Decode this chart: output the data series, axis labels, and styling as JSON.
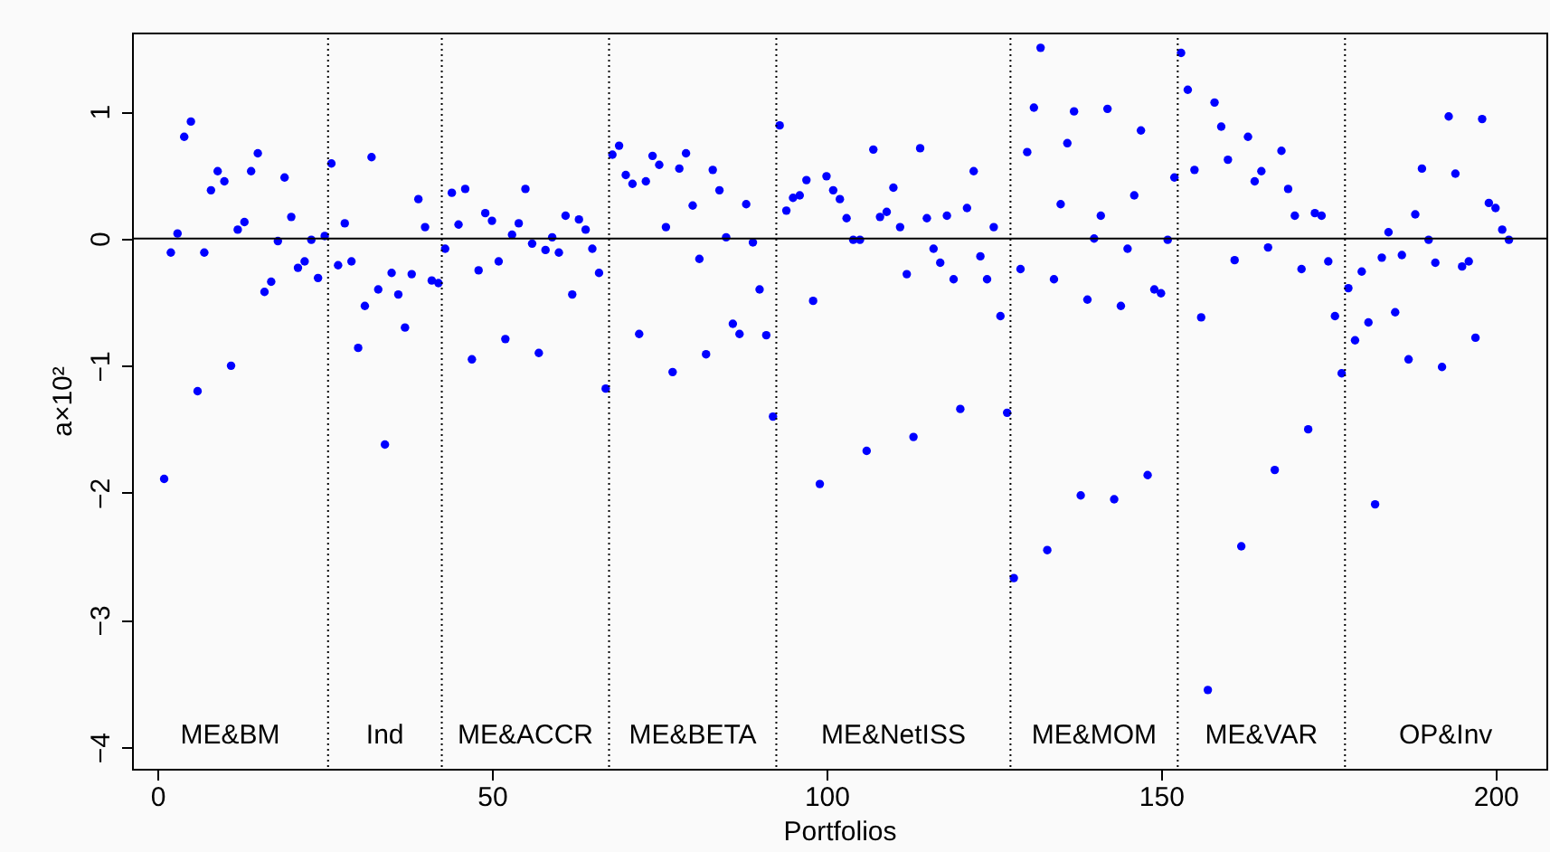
{
  "chart_data": {
    "type": "scatter",
    "xlabel": "Portfolios",
    "ylabel": "a×10²",
    "x": [
      1,
      2,
      3,
      4,
      5,
      6,
      7,
      8,
      9,
      10,
      11,
      12,
      13,
      14,
      15,
      16,
      17,
      18,
      19,
      20,
      21,
      22,
      23,
      24,
      25,
      26,
      27,
      28,
      29,
      30,
      31,
      32,
      33,
      34,
      35,
      36,
      37,
      38,
      39,
      40,
      41,
      42,
      43,
      44,
      45,
      46,
      47,
      48,
      49,
      50,
      51,
      52,
      53,
      54,
      55,
      56,
      57,
      58,
      59,
      60,
      61,
      62,
      63,
      64,
      65,
      66,
      67,
      68,
      69,
      70,
      71,
      72,
      73,
      74,
      75,
      76,
      77,
      78,
      79,
      80,
      81,
      82,
      83,
      84,
      85,
      86,
      87,
      88,
      89,
      90,
      91,
      92,
      93,
      94,
      95,
      96,
      97,
      98,
      99,
      100,
      101,
      102,
      103,
      104,
      105,
      106,
      107,
      108,
      109,
      110,
      111,
      112,
      113,
      114,
      115,
      116,
      117,
      118,
      119,
      120,
      121,
      122,
      123,
      124,
      125,
      126,
      127,
      128,
      129,
      130,
      131,
      132,
      133,
      134,
      135,
      136,
      137,
      138,
      139,
      140,
      141,
      142,
      143,
      144,
      145,
      146,
      147,
      148,
      149,
      150,
      151,
      152,
      153,
      154,
      155,
      156,
      157,
      158,
      159,
      160,
      161,
      162,
      163,
      164,
      165,
      166,
      167,
      168,
      169,
      170,
      171,
      172,
      173,
      174,
      175,
      176,
      177,
      178,
      179,
      180,
      181,
      182,
      183,
      184,
      185,
      186,
      187,
      188,
      189,
      190,
      191,
      192,
      193,
      194,
      195,
      196,
      197,
      198,
      199,
      200,
      201,
      202
    ],
    "series": [
      {
        "color": "#0000ff",
        "values": [
          -1.89,
          -0.11,
          0.04,
          0.8,
          0.92,
          -1.2,
          -0.11,
          0.38,
          0.53,
          0.45,
          -1.0,
          0.07,
          0.13,
          0.53,
          0.67,
          -0.42,
          -0.34,
          -0.02,
          0.48,
          0.17,
          -0.23,
          -0.18,
          -0.01,
          -0.31,
          0.02,
          0.59,
          -0.21,
          0.12,
          -0.18,
          -0.86,
          -0.53,
          0.64,
          -0.4,
          -1.62,
          -0.27,
          -0.44,
          -0.7,
          -0.28,
          0.31,
          0.09,
          -0.33,
          -0.35,
          -0.08,
          0.36,
          0.11,
          0.39,
          -0.95,
          -0.25,
          0.2,
          0.14,
          -0.18,
          -0.79,
          0.03,
          0.12,
          0.39,
          -0.04,
          -0.9,
          -0.09,
          0.01,
          -0.11,
          0.18,
          -0.44,
          0.15,
          0.07,
          -0.08,
          -0.27,
          -1.18,
          0.66,
          0.73,
          0.5,
          0.43,
          -0.75,
          0.45,
          0.65,
          0.58,
          0.09,
          -1.05,
          0.55,
          0.67,
          0.26,
          -0.16,
          -0.91,
          0.54,
          0.38,
          0.01,
          -0.67,
          -0.75,
          0.27,
          -0.03,
          -0.4,
          -0.76,
          -1.4,
          0.89,
          0.22,
          0.32,
          0.34,
          0.46,
          -0.49,
          -1.93,
          0.49,
          0.38,
          0.31,
          0.16,
          -0.01,
          -0.01,
          -1.67,
          0.7,
          0.17,
          0.21,
          0.4,
          0.09,
          -0.28,
          -1.56,
          0.71,
          0.16,
          -0.08,
          -0.19,
          0.18,
          -0.32,
          -1.34,
          0.24,
          0.53,
          -0.14,
          -0.32,
          0.09,
          -0.61,
          -1.37,
          -2.67,
          -0.24,
          0.68,
          1.03,
          1.5,
          -2.45,
          -0.32,
          0.27,
          0.75,
          1.0,
          -2.02,
          -0.48,
          0.0,
          0.18,
          1.02,
          -2.05,
          -0.53,
          -0.08,
          0.34,
          0.85,
          -1.86,
          -0.4,
          -0.43,
          -0.01,
          0.48,
          1.46,
          1.17,
          0.54,
          -0.62,
          -3.55,
          1.07,
          0.88,
          0.62,
          -0.17,
          -2.42,
          0.8,
          0.45,
          0.53,
          -0.07,
          -1.82,
          0.69,
          0.39,
          0.18,
          -0.24,
          -1.5,
          0.2,
          0.18,
          -0.18,
          -0.61,
          -1.06,
          -0.39,
          -0.8,
          -0.26,
          -0.66,
          -2.09,
          -0.15,
          0.05,
          -0.58,
          -0.13,
          -0.95,
          0.19,
          0.55,
          -0.01,
          -0.19,
          -1.01,
          0.96,
          0.51,
          -0.22,
          -0.18,
          -0.78,
          0.94,
          0.28,
          0.24,
          0.07,
          -0.01
        ]
      }
    ],
    "xlim": [
      -3.8,
      207.6
    ],
    "xticks": [
      0,
      50,
      100,
      150,
      200
    ],
    "ylim": [
      -4.17,
      1.62
    ],
    "yticks": [
      -4,
      -3,
      -2,
      -1,
      0,
      1
    ],
    "grid": false,
    "marker": "circle",
    "ref_lines": [
      {
        "axis": "y",
        "value": 0,
        "color": "#000000",
        "line_style": "solid"
      },
      {
        "axis": "x",
        "value": 25.5,
        "color": "#000000",
        "line_style": "dotted"
      },
      {
        "axis": "x",
        "value": 42.5,
        "color": "#000000",
        "line_style": "dotted"
      },
      {
        "axis": "x",
        "value": 67.5,
        "color": "#000000",
        "line_style": "dotted"
      },
      {
        "axis": "x",
        "value": 92.5,
        "color": "#000000",
        "line_style": "dotted"
      },
      {
        "axis": "x",
        "value": 127.5,
        "color": "#000000",
        "line_style": "dotted"
      },
      {
        "axis": "x",
        "value": 152.5,
        "color": "#000000",
        "line_style": "dotted"
      },
      {
        "axis": "x",
        "value": 177.5,
        "color": "#000000",
        "line_style": "dotted"
      }
    ],
    "annotations": [
      "ME&BM",
      "Ind",
      "ME&ACCR",
      "ME&BETA",
      "ME&NetISS",
      "ME&MOM",
      "ME&VAR",
      "OP&Inv"
    ]
  }
}
